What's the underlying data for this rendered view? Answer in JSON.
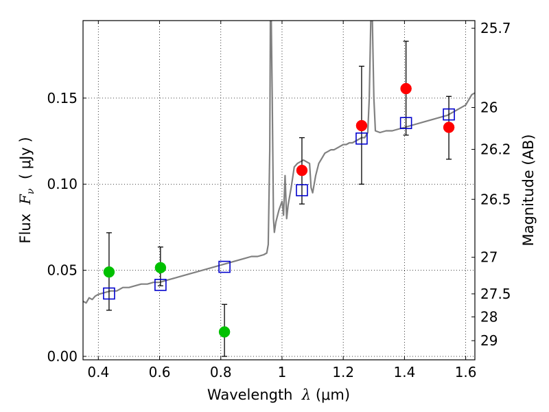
{
  "chart_data": {
    "type": "scatter",
    "xlabel": {
      "prefix": "Wavelength  ",
      "symbol": "λ",
      "unit": " (μm)"
    },
    "ylabel": {
      "prefix": "Flux  ",
      "symbol": "F",
      "subscript": "ν",
      "unit": "  ( μJy )"
    },
    "y2label": "Magnitude (AB)",
    "xlim": [
      0.35,
      1.63
    ],
    "ylim": [
      -0.002,
      0.195
    ],
    "grid": true,
    "x_ticks": [
      {
        "value": 0.4,
        "label": "0.4"
      },
      {
        "value": 0.6,
        "label": "0.6"
      },
      {
        "value": 0.8,
        "label": "0.8"
      },
      {
        "value": 1.0,
        "label": "1"
      },
      {
        "value": 1.2,
        "label": "1.2"
      },
      {
        "value": 1.4,
        "label": "1.4"
      },
      {
        "value": 1.6,
        "label": "1.6"
      }
    ],
    "y_ticks": [
      {
        "value": 0.0,
        "label": "0.00"
      },
      {
        "value": 0.05,
        "label": "0.05"
      },
      {
        "value": 0.1,
        "label": "0.10"
      },
      {
        "value": 0.15,
        "label": "0.15"
      }
    ],
    "y2_ticks": [
      {
        "value": 25.7,
        "label": "25.7"
      },
      {
        "value": 26.0,
        "label": "26"
      },
      {
        "value": 26.2,
        "label": "26.2"
      },
      {
        "value": 26.5,
        "label": "26.5"
      },
      {
        "value": 27.0,
        "label": "27"
      },
      {
        "value": 27.5,
        "label": "27.5"
      },
      {
        "value": 28.0,
        "label": "28"
      },
      {
        "value": 29.0,
        "label": "29"
      }
    ],
    "colors": {
      "green": "#00c000",
      "red": "#ff0000",
      "model": "#0000cc",
      "spectrum": "#808080",
      "errorbar": "#000000"
    },
    "series": [
      {
        "marker": "circle",
        "color": "green",
        "points": [
          {
            "x": 0.435,
            "y": 0.049,
            "err_low": 0.0222,
            "err_high": 0.0228
          },
          {
            "x": 0.603,
            "y": 0.0515,
            "err_low": 0.0105,
            "err_high": 0.012
          },
          {
            "x": 0.812,
            "y": 0.0142,
            "err_low": 0.0142,
            "err_high": 0.016
          }
        ]
      },
      {
        "marker": "circle",
        "color": "red",
        "points": [
          {
            "x": 1.065,
            "y": 0.108,
            "err_low": 0.0195,
            "err_high": 0.019
          },
          {
            "x": 1.26,
            "y": 0.134,
            "err_low": 0.034,
            "err_high": 0.0345
          },
          {
            "x": 1.405,
            "y": 0.1555,
            "err_low": 0.027,
            "err_high": 0.0275
          },
          {
            "x": 1.545,
            "y": 0.133,
            "err_low": 0.0185,
            "err_high": 0.018
          }
        ]
      },
      {
        "marker": "square",
        "color": "model",
        "points": [
          {
            "x": 0.435,
            "y": 0.0365
          },
          {
            "x": 0.603,
            "y": 0.0415
          },
          {
            "x": 0.812,
            "y": 0.052
          },
          {
            "x": 1.065,
            "y": 0.0965
          },
          {
            "x": 1.26,
            "y": 0.1265
          },
          {
            "x": 1.405,
            "y": 0.1355
          },
          {
            "x": 1.545,
            "y": 0.1405
          }
        ]
      }
    ],
    "spectrum": [
      [
        0.35,
        0.032
      ],
      [
        0.36,
        0.031
      ],
      [
        0.37,
        0.034
      ],
      [
        0.38,
        0.033
      ],
      [
        0.39,
        0.035
      ],
      [
        0.4,
        0.036
      ],
      [
        0.42,
        0.037
      ],
      [
        0.44,
        0.038
      ],
      [
        0.46,
        0.038
      ],
      [
        0.48,
        0.04
      ],
      [
        0.5,
        0.04
      ],
      [
        0.52,
        0.041
      ],
      [
        0.54,
        0.042
      ],
      [
        0.56,
        0.042
      ],
      [
        0.58,
        0.043
      ],
      [
        0.6,
        0.043
      ],
      [
        0.62,
        0.044
      ],
      [
        0.64,
        0.045
      ],
      [
        0.66,
        0.046
      ],
      [
        0.68,
        0.047
      ],
      [
        0.7,
        0.048
      ],
      [
        0.72,
        0.049
      ],
      [
        0.74,
        0.05
      ],
      [
        0.76,
        0.051
      ],
      [
        0.78,
        0.052
      ],
      [
        0.8,
        0.053
      ],
      [
        0.82,
        0.054
      ],
      [
        0.84,
        0.055
      ],
      [
        0.86,
        0.056
      ],
      [
        0.88,
        0.057
      ],
      [
        0.9,
        0.058
      ],
      [
        0.92,
        0.058
      ],
      [
        0.94,
        0.059
      ],
      [
        0.95,
        0.06
      ],
      [
        0.955,
        0.065
      ],
      [
        0.96,
        0.12
      ],
      [
        0.962,
        0.195
      ],
      [
        0.965,
        0.195
      ],
      [
        0.968,
        0.15
      ],
      [
        0.972,
        0.08
      ],
      [
        0.975,
        0.072
      ],
      [
        0.98,
        0.078
      ],
      [
        0.99,
        0.085
      ],
      [
        1.0,
        0.09
      ],
      [
        1.005,
        0.082
      ],
      [
        1.01,
        0.105
      ],
      [
        1.015,
        0.08
      ],
      [
        1.02,
        0.088
      ],
      [
        1.03,
        0.098
      ],
      [
        1.04,
        0.11
      ],
      [
        1.05,
        0.112
      ],
      [
        1.06,
        0.113
      ],
      [
        1.07,
        0.114
      ],
      [
        1.08,
        0.113
      ],
      [
        1.09,
        0.112
      ],
      [
        1.095,
        0.098
      ],
      [
        1.1,
        0.095
      ],
      [
        1.11,
        0.105
      ],
      [
        1.12,
        0.112
      ],
      [
        1.13,
        0.115
      ],
      [
        1.14,
        0.118
      ],
      [
        1.15,
        0.119
      ],
      [
        1.16,
        0.12
      ],
      [
        1.17,
        0.12
      ],
      [
        1.18,
        0.121
      ],
      [
        1.19,
        0.122
      ],
      [
        1.2,
        0.123
      ],
      [
        1.21,
        0.123
      ],
      [
        1.22,
        0.124
      ],
      [
        1.23,
        0.124
      ],
      [
        1.24,
        0.125
      ],
      [
        1.25,
        0.126
      ],
      [
        1.26,
        0.127
      ],
      [
        1.27,
        0.127
      ],
      [
        1.28,
        0.13
      ],
      [
        1.285,
        0.15
      ],
      [
        1.29,
        0.195
      ],
      [
        1.295,
        0.195
      ],
      [
        1.3,
        0.15
      ],
      [
        1.305,
        0.131
      ],
      [
        1.32,
        0.13
      ],
      [
        1.34,
        0.131
      ],
      [
        1.36,
        0.131
      ],
      [
        1.38,
        0.132
      ],
      [
        1.4,
        0.133
      ],
      [
        1.42,
        0.134
      ],
      [
        1.44,
        0.135
      ],
      [
        1.46,
        0.136
      ],
      [
        1.48,
        0.137
      ],
      [
        1.5,
        0.138
      ],
      [
        1.52,
        0.139
      ],
      [
        1.54,
        0.14
      ],
      [
        1.56,
        0.142
      ],
      [
        1.58,
        0.144
      ],
      [
        1.6,
        0.146
      ],
      [
        1.62,
        0.152
      ],
      [
        1.63,
        0.153
      ]
    ]
  }
}
